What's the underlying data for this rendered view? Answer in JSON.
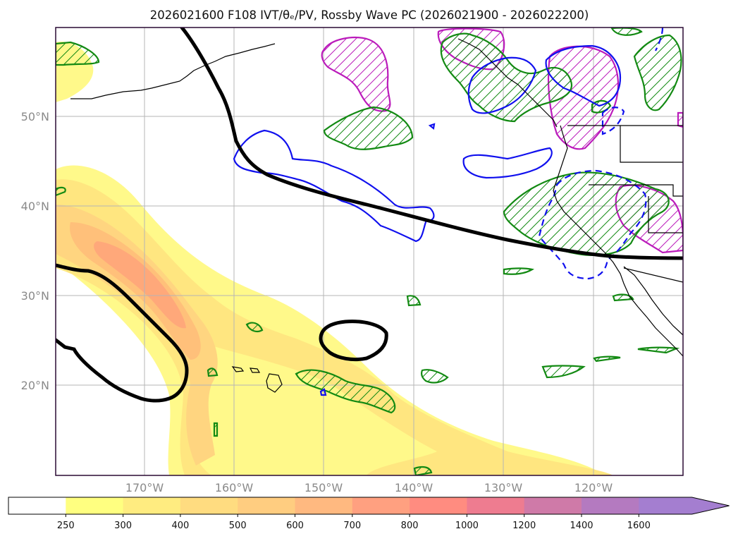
{
  "title": "2026021600 F108 IVT/θₑ/PV, Rossby Wave PC (2026021900 - 2026022200)",
  "map": {
    "lon_range": [
      -180,
      -110
    ],
    "lat_range": [
      10,
      60
    ],
    "lat_ticks": [
      "50°N",
      "40°N",
      "30°N",
      "20°N"
    ],
    "lon_ticks": [
      "170°W",
      "160°W",
      "150°W",
      "140°W",
      "130°W",
      "120°W"
    ]
  },
  "colorbar": {
    "levels": [
      "250",
      "300",
      "400",
      "500",
      "600",
      "700",
      "800",
      "1000",
      "1200",
      "1400",
      "1600"
    ],
    "colors": [
      "#ffffff",
      "#ffff80",
      "#ffec80",
      "#ffdc80",
      "#ffcd80",
      "#ffb980",
      "#ffa080",
      "#ff8c80",
      "#ee7c90",
      "#cf7aa8",
      "#b47ac0",
      "#a47ed0"
    ]
  },
  "styles": {
    "ivt_fill": [
      "#fff98a",
      "#ffe680",
      "#ffd580",
      "#ffc07a",
      "#ffa87a"
    ],
    "contour_green": "#138a13",
    "contour_blue": "#1010ee",
    "contour_magenta": "#bb1bbb",
    "rossby": "#000000",
    "coast": "#000000",
    "grid": "#b5b5b5"
  }
}
